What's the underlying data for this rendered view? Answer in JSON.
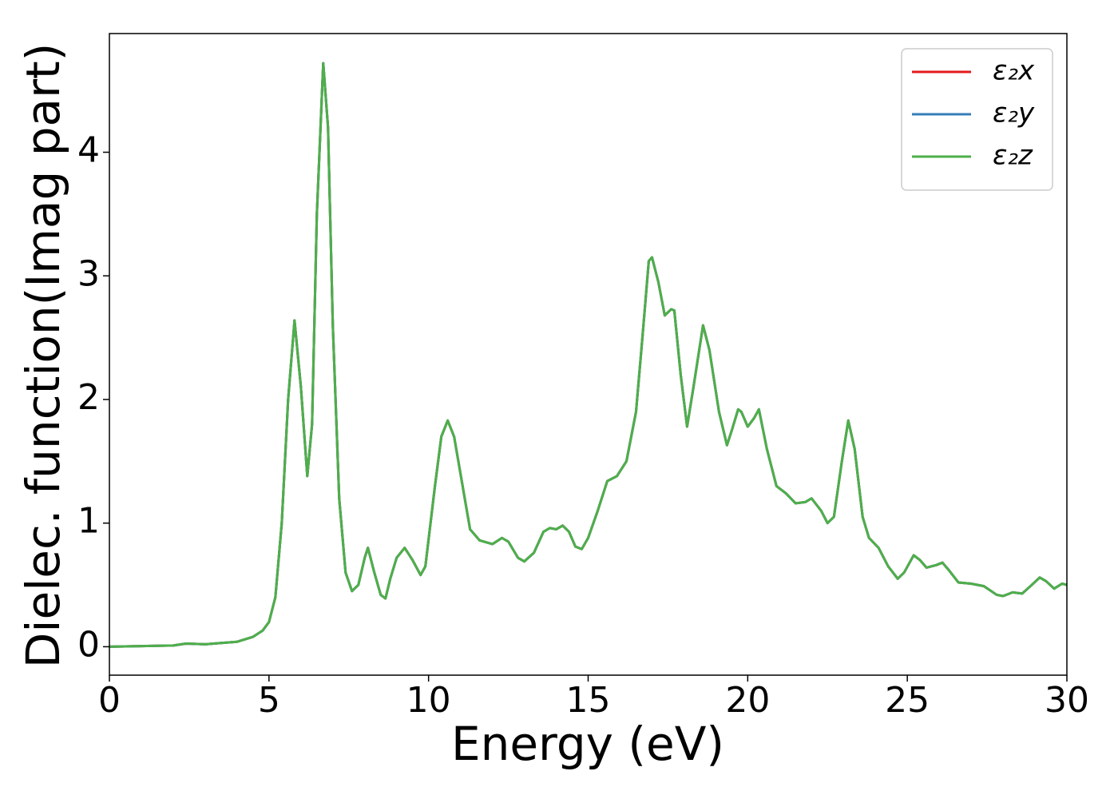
{
  "chart_data": {
    "type": "line",
    "x_label": "Energy (eV)",
    "y_label": "Dielec. function(Imag part)",
    "x": [
      0,
      1,
      2,
      2.4,
      3,
      3.5,
      4,
      4.5,
      4.8,
      5.0,
      5.2,
      5.4,
      5.6,
      5.8,
      6.0,
      6.2,
      6.35,
      6.5,
      6.7,
      6.85,
      7.0,
      7.2,
      7.4,
      7.6,
      7.8,
      8.0,
      8.1,
      8.3,
      8.5,
      8.65,
      8.8,
      9.0,
      9.25,
      9.5,
      9.75,
      9.9,
      10.2,
      10.4,
      10.6,
      10.8,
      11.0,
      11.3,
      11.6,
      12.0,
      12.3,
      12.5,
      12.8,
      13.0,
      13.3,
      13.6,
      13.8,
      14.0,
      14.2,
      14.4,
      14.6,
      14.8,
      15.0,
      15.3,
      15.6,
      15.9,
      16.2,
      16.5,
      16.7,
      16.9,
      17.0,
      17.2,
      17.4,
      17.6,
      17.7,
      17.9,
      18.1,
      18.3,
      18.6,
      18.8,
      19.1,
      19.35,
      19.5,
      19.7,
      19.8,
      20.0,
      20.2,
      20.35,
      20.6,
      20.9,
      21.2,
      21.5,
      21.8,
      22.0,
      22.3,
      22.5,
      22.7,
      22.95,
      23.15,
      23.35,
      23.6,
      23.8,
      24.1,
      24.4,
      24.7,
      24.9,
      25.2,
      25.4,
      25.6,
      25.9,
      26.1,
      26.3,
      26.6,
      27.0,
      27.4,
      27.8,
      28.0,
      28.3,
      28.6,
      28.9,
      29.15,
      29.35,
      29.6,
      29.85,
      30
    ],
    "series": [
      {
        "name": "ε₂x",
        "color": "#e41a1c",
        "values": [
          0.0,
          0.005,
          0.01,
          0.025,
          0.02,
          0.03,
          0.04,
          0.08,
          0.13,
          0.2,
          0.4,
          1.0,
          2.0,
          2.64,
          2.1,
          1.38,
          1.8,
          3.5,
          4.72,
          4.2,
          2.6,
          1.2,
          0.6,
          0.45,
          0.5,
          0.72,
          0.8,
          0.6,
          0.42,
          0.39,
          0.55,
          0.72,
          0.8,
          0.7,
          0.58,
          0.65,
          1.3,
          1.7,
          1.83,
          1.7,
          1.4,
          0.95,
          0.86,
          0.83,
          0.88,
          0.85,
          0.72,
          0.69,
          0.76,
          0.93,
          0.96,
          0.95,
          0.98,
          0.93,
          0.81,
          0.79,
          0.88,
          1.1,
          1.34,
          1.38,
          1.5,
          1.9,
          2.5,
          3.12,
          3.15,
          2.95,
          2.68,
          2.73,
          2.72,
          2.2,
          1.78,
          2.1,
          2.6,
          2.4,
          1.9,
          1.63,
          1.75,
          1.92,
          1.9,
          1.78,
          1.85,
          1.92,
          1.6,
          1.3,
          1.24,
          1.16,
          1.17,
          1.2,
          1.1,
          1.0,
          1.05,
          1.5,
          1.83,
          1.6,
          1.05,
          0.88,
          0.8,
          0.65,
          0.55,
          0.6,
          0.74,
          0.7,
          0.64,
          0.66,
          0.68,
          0.62,
          0.52,
          0.51,
          0.49,
          0.42,
          0.41,
          0.44,
          0.43,
          0.5,
          0.56,
          0.53,
          0.47,
          0.51,
          0.5
        ]
      },
      {
        "name": "ε₂y",
        "color": "#377eb8",
        "values": [
          0.0,
          0.005,
          0.01,
          0.025,
          0.02,
          0.03,
          0.04,
          0.08,
          0.13,
          0.2,
          0.4,
          1.0,
          2.0,
          2.64,
          2.1,
          1.38,
          1.8,
          3.5,
          4.72,
          4.2,
          2.6,
          1.2,
          0.6,
          0.45,
          0.5,
          0.72,
          0.8,
          0.6,
          0.42,
          0.39,
          0.55,
          0.72,
          0.8,
          0.7,
          0.58,
          0.65,
          1.3,
          1.7,
          1.83,
          1.7,
          1.4,
          0.95,
          0.86,
          0.83,
          0.88,
          0.85,
          0.72,
          0.69,
          0.76,
          0.93,
          0.96,
          0.95,
          0.98,
          0.93,
          0.81,
          0.79,
          0.88,
          1.1,
          1.34,
          1.38,
          1.5,
          1.9,
          2.5,
          3.12,
          3.15,
          2.95,
          2.68,
          2.73,
          2.72,
          2.2,
          1.78,
          2.1,
          2.6,
          2.4,
          1.9,
          1.63,
          1.75,
          1.92,
          1.9,
          1.78,
          1.85,
          1.92,
          1.6,
          1.3,
          1.24,
          1.16,
          1.17,
          1.2,
          1.1,
          1.0,
          1.05,
          1.5,
          1.83,
          1.6,
          1.05,
          0.88,
          0.8,
          0.65,
          0.55,
          0.6,
          0.74,
          0.7,
          0.64,
          0.66,
          0.68,
          0.62,
          0.52,
          0.51,
          0.49,
          0.42,
          0.41,
          0.44,
          0.43,
          0.5,
          0.56,
          0.53,
          0.47,
          0.51,
          0.5
        ]
      },
      {
        "name": "ε₂z",
        "color": "#4daf4a",
        "values": [
          0.0,
          0.005,
          0.01,
          0.025,
          0.02,
          0.03,
          0.04,
          0.08,
          0.13,
          0.2,
          0.4,
          1.0,
          2.0,
          2.64,
          2.1,
          1.38,
          1.8,
          3.5,
          4.72,
          4.2,
          2.6,
          1.2,
          0.6,
          0.45,
          0.5,
          0.72,
          0.8,
          0.6,
          0.42,
          0.39,
          0.55,
          0.72,
          0.8,
          0.7,
          0.58,
          0.65,
          1.3,
          1.7,
          1.83,
          1.7,
          1.4,
          0.95,
          0.86,
          0.83,
          0.88,
          0.85,
          0.72,
          0.69,
          0.76,
          0.93,
          0.96,
          0.95,
          0.98,
          0.93,
          0.81,
          0.79,
          0.88,
          1.1,
          1.34,
          1.38,
          1.5,
          1.9,
          2.5,
          3.12,
          3.15,
          2.95,
          2.68,
          2.73,
          2.72,
          2.2,
          1.78,
          2.1,
          2.6,
          2.4,
          1.9,
          1.63,
          1.75,
          1.92,
          1.9,
          1.78,
          1.85,
          1.92,
          1.6,
          1.3,
          1.24,
          1.16,
          1.17,
          1.2,
          1.1,
          1.0,
          1.05,
          1.5,
          1.83,
          1.6,
          1.05,
          0.88,
          0.8,
          0.65,
          0.55,
          0.6,
          0.74,
          0.7,
          0.64,
          0.66,
          0.68,
          0.62,
          0.52,
          0.51,
          0.49,
          0.42,
          0.41,
          0.44,
          0.43,
          0.5,
          0.56,
          0.53,
          0.47,
          0.51,
          0.5
        ]
      }
    ],
    "xlim": [
      0,
      30
    ],
    "xticks": [
      0,
      5,
      10,
      15,
      20,
      25,
      30
    ],
    "ylim": [
      -0.23,
      4.96
    ],
    "yticks": [
      0,
      1,
      2,
      3,
      4
    ],
    "legend": "upper right",
    "grid": false
  }
}
